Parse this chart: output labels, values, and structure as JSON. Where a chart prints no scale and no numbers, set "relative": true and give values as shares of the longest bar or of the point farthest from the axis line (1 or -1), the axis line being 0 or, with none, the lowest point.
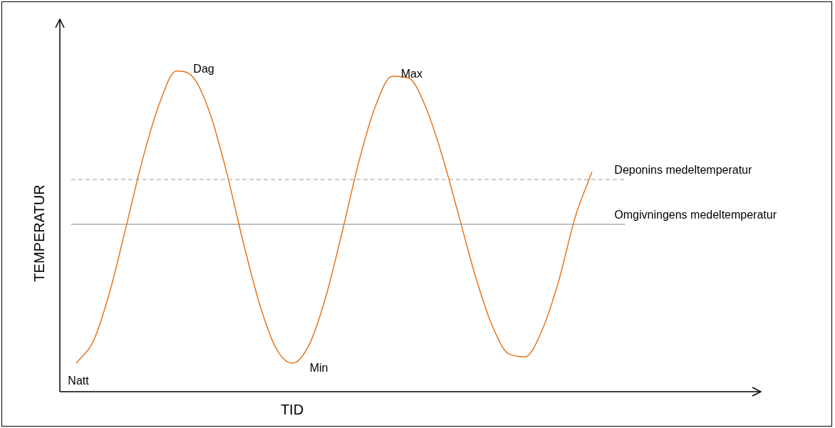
{
  "chart_data": {
    "type": "line",
    "relative": true,
    "xlabel": "TID",
    "ylabel": "TEMPERATUR",
    "categories": [
      null,
      null,
      null,
      null,
      null,
      null,
      null,
      null,
      null,
      null,
      null,
      null,
      null,
      null,
      null,
      null,
      null,
      null,
      null,
      null,
      null,
      null,
      null,
      null,
      null,
      null,
      null,
      null,
      null,
      null,
      null,
      null,
      null,
      null,
      null,
      null,
      null,
      null,
      null,
      null,
      null,
      null,
      null
    ],
    "series": [
      {
        "color": "#e8731a",
        "values": [
          null,
          0.09,
          0.156,
          0.311,
          0.518,
          0.729,
          0.9,
          1,
          0.982,
          0.873,
          0.691,
          0.473,
          0.276,
          0.136,
          0.089,
          0.147,
          0.296,
          0.502,
          0.72,
          0.893,
          0.984,
          0.978,
          0.889,
          0.736,
          0.549,
          0.36,
          0.207,
          0.118,
          0.109,
          0.191,
          0.344,
          0.544,
          0.684,
          null,
          null,
          null,
          null,
          null,
          null,
          null,
          null,
          null,
          null
        ]
      }
    ],
    "ref_lines": [
      {
        "axis": "y",
        "value": 0.662,
        "label": "Deponins medeltemperatur",
        "color": "#999999",
        "line_style": "dashed"
      },
      {
        "axis": "y",
        "value": 0.522,
        "label": "Omgivningens medeltemperatur",
        "color": "#808080",
        "line_style": "solid"
      }
    ],
    "annotations": [
      "Natt",
      "Dag",
      "Min",
      "Max"
    ],
    "legend": false,
    "marker": "none",
    "line_style": "solid"
  }
}
